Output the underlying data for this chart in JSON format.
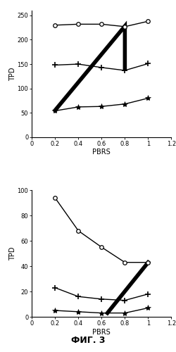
{
  "top_chart": {
    "ylabel": "TPD",
    "xlabel": "PBRS",
    "xlim": [
      0,
      1.2
    ],
    "ylim": [
      0,
      260
    ],
    "yticks": [
      0,
      50,
      100,
      150,
      200,
      250
    ],
    "xticks": [
      0,
      0.2,
      0.4,
      0.6,
      0.8,
      1.0,
      1.2
    ],
    "circle_line": {
      "x": [
        0.2,
        0.4,
        0.6,
        0.8,
        1.0
      ],
      "y": [
        230,
        232,
        232,
        227,
        238
      ]
    },
    "plus_line": {
      "x": [
        0.2,
        0.4,
        0.6,
        0.8,
        1.0
      ],
      "y": [
        148,
        150,
        143,
        137,
        151
      ]
    },
    "star_line": {
      "x": [
        0.2,
        0.4,
        0.6,
        0.8,
        1.0
      ],
      "y": [
        54,
        62,
        63,
        68,
        80
      ]
    },
    "thick_line": {
      "x": [
        0.2,
        0.8,
        0.8
      ],
      "y": [
        55,
        228,
        140
      ]
    }
  },
  "bottom_chart": {
    "ylabel": "TPD",
    "xlabel": "PBRS",
    "xlim": [
      0,
      1.2
    ],
    "ylim": [
      0,
      100
    ],
    "yticks": [
      0,
      20,
      40,
      60,
      80,
      100
    ],
    "xticks": [
      0,
      0.2,
      0.4,
      0.6,
      0.8,
      1.0,
      1.2
    ],
    "circle_line": {
      "x": [
        0.2,
        0.4,
        0.6,
        0.8,
        1.0
      ],
      "y": [
        94,
        68,
        55,
        43,
        43
      ]
    },
    "plus_line": {
      "x": [
        0.2,
        0.4,
        0.6,
        0.8,
        1.0
      ],
      "y": [
        23,
        16,
        14,
        13,
        18
      ]
    },
    "star_line": {
      "x": [
        0.2,
        0.4,
        0.6,
        0.8,
        1.0
      ],
      "y": [
        5,
        4,
        3,
        3,
        7
      ]
    },
    "thick_line": {
      "x": [
        0.65,
        1.0
      ],
      "y": [
        3,
        43
      ]
    }
  },
  "fig_label": "ФИГ. 3",
  "line_color": "#000000",
  "thick_linewidth": 4.0,
  "thin_linewidth": 1.0,
  "marker_size_circle": 4,
  "marker_size_plus": 6,
  "marker_size_star": 6,
  "fontsize_tick": 6,
  "fontsize_label": 7,
  "fontsize_ylabel": 7,
  "fontsize_figlabel": 9
}
